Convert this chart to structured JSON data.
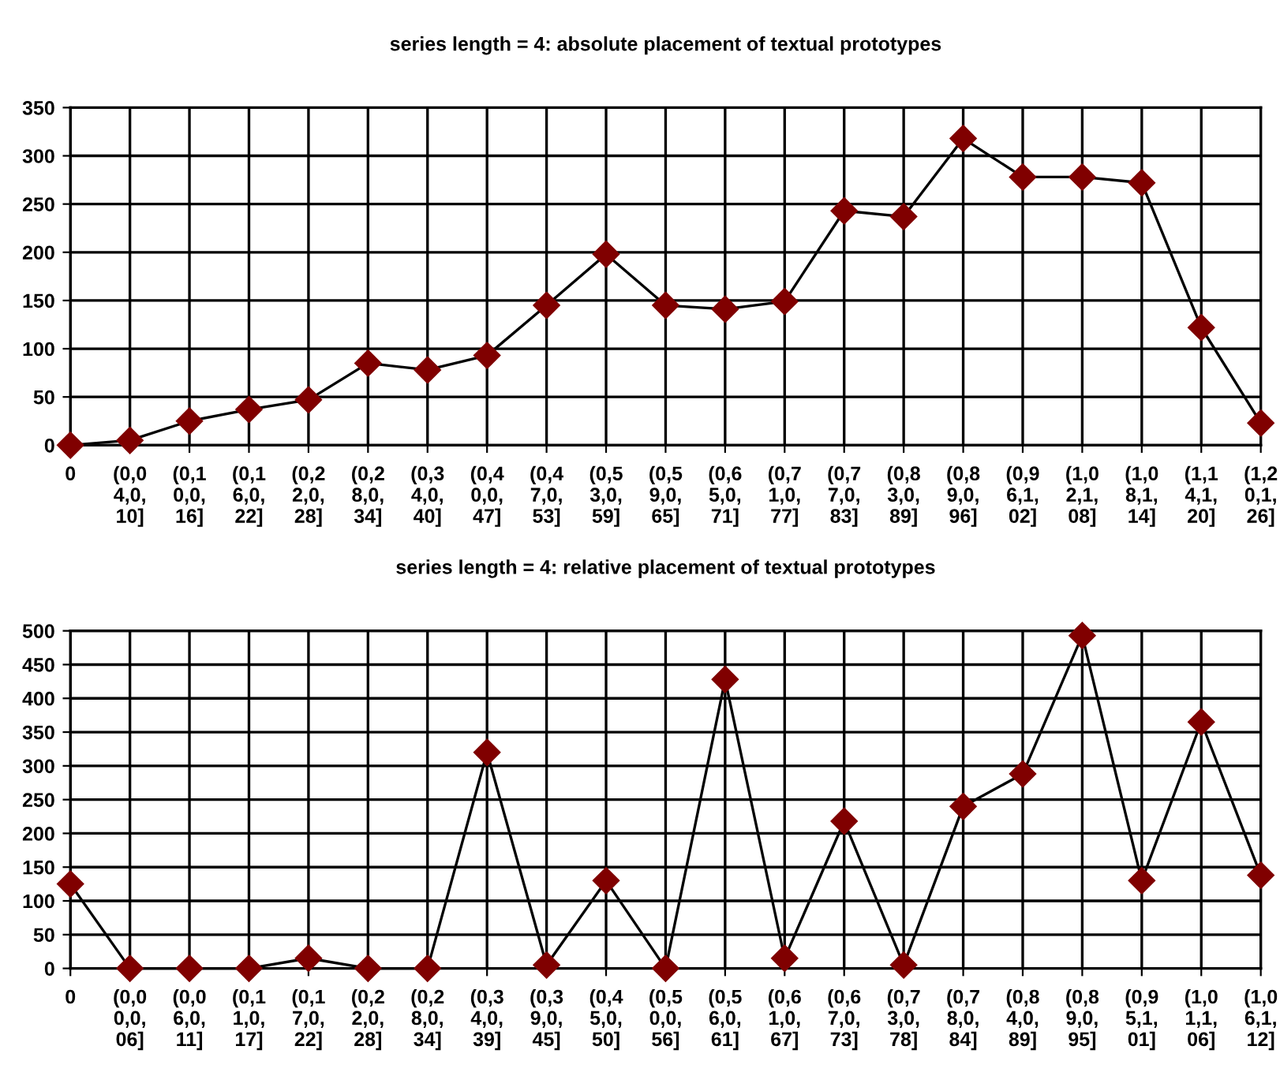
{
  "chart_data": [
    {
      "type": "line",
      "title": "series length = 4: absolute placement of textual prototypes",
      "categories": [
        "0",
        "(0,0\n4,0,\n10]",
        "(0,1\n0,0,\n16]",
        "(0,1\n6,0,\n22]",
        "(0,2\n2,0,\n28]",
        "(0,2\n8,0,\n34]",
        "(0,3\n4,0,\n40]",
        "(0,4\n0,0,\n47]",
        "(0,4\n7,0,\n53]",
        "(0,5\n3,0,\n59]",
        "(0,5\n9,0,\n65]",
        "(0,6\n5,0,\n71]",
        "(0,7\n1,0,\n77]",
        "(0,7\n7,0,\n83]",
        "(0,8\n3,0,\n89]",
        "(0,8\n9,0,\n96]",
        "(0,9\n6,1,\n02]",
        "(1,0\n2,1,\n08]",
        "(1,0\n8,1,\n14]",
        "(1,1\n4,1,\n20]",
        "(1,2\n0,1,\n26]"
      ],
      "series": [
        {
          "color": "#800000",
          "values": [
            0,
            5,
            25,
            37,
            47,
            85,
            78,
            93,
            145,
            198,
            145,
            141,
            149,
            243,
            237,
            318,
            278,
            278,
            272,
            122,
            23
          ]
        }
      ],
      "ylim": [
        0,
        350
      ],
      "yticks": [
        0,
        50,
        100,
        150,
        200,
        250,
        300,
        350
      ],
      "grid": true,
      "marker": "diamond",
      "line_style": "solid"
    },
    {
      "type": "line",
      "title": "series length = 4: relative placement of textual prototypes",
      "categories": [
        "0",
        "(0,0\n0,0,\n06]",
        "(0,0\n6,0,\n11]",
        "(0,1\n1,0,\n17]",
        "(0,1\n7,0,\n22]",
        "(0,2\n2,0,\n28]",
        "(0,2\n8,0,\n34]",
        "(0,3\n4,0,\n39]",
        "(0,3\n9,0,\n45]",
        "(0,4\n5,0,\n50]",
        "(0,5\n0,0,\n56]",
        "(0,5\n6,0,\n61]",
        "(0,6\n1,0,\n67]",
        "(0,6\n7,0,\n73]",
        "(0,7\n3,0,\n78]",
        "(0,7\n8,0,\n84]",
        "(0,8\n4,0,\n89]",
        "(0,8\n9,0,\n95]",
        "(0,9\n5,1,\n01]",
        "(1,0\n1,1,\n06]",
        "(1,0\n6,1,\n12]"
      ],
      "series": [
        {
          "color": "#800000",
          "values": [
            125,
            0,
            0,
            0,
            15,
            0,
            0,
            320,
            5,
            130,
            0,
            428,
            15,
            218,
            5,
            240,
            288,
            493,
            130,
            365,
            138
          ]
        }
      ],
      "ylim": [
        0,
        500
      ],
      "yticks": [
        0,
        50,
        100,
        150,
        200,
        250,
        300,
        350,
        400,
        450,
        500
      ],
      "grid": true,
      "marker": "diamond",
      "line_style": "solid"
    }
  ]
}
